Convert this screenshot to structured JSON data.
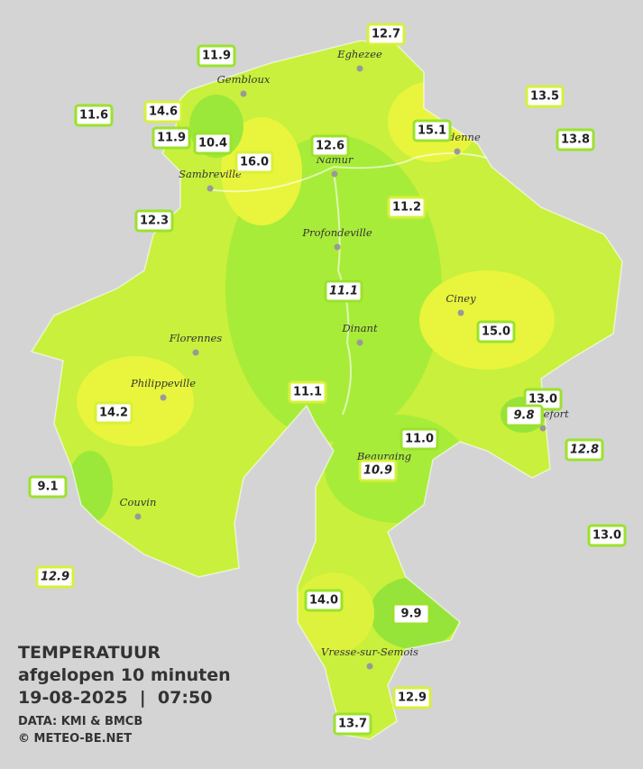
{
  "title": "TEMPERATUUR",
  "subtitle": "afgelopen 10 minuten",
  "timestamp": "19-08-2025  |  07:50",
  "source": "DATA: KMI & BMCB",
  "credit": "© METEO-BE.NET",
  "cities": [
    "Eghezee",
    "Gembloux",
    "Andenne",
    "Namur",
    "Sambreville",
    "Profondeville",
    "Ciney",
    "Florennes",
    "Dinant",
    "Philippeville",
    "Rochefort",
    "Beauraing",
    "Couvin",
    "Vresse-sur-Semois"
  ],
  "stations": [
    "12.7",
    "11.9",
    "11.6",
    "14.6",
    "11.9",
    "10.4",
    "16.0",
    "12.6",
    "15.1",
    "13.5",
    "13.8",
    "12.3",
    "11.2",
    "11.1",
    "15.0",
    "11.1",
    "13.0",
    "9.8",
    "14.2",
    "11.0",
    "12.8",
    "10.9",
    "9.1",
    "13.0",
    "12.9",
    "14.0",
    "9.9",
    "12.9",
    "13.7"
  ]
}
